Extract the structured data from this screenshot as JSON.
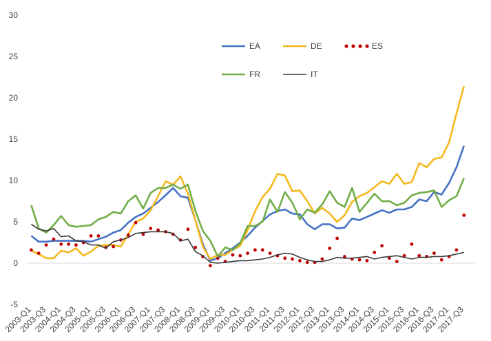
{
  "chart_data": {
    "type": "line",
    "title": "",
    "xlabel": "",
    "ylabel": "",
    "ylim": [
      -5,
      30
    ],
    "yticks": [
      -5,
      0,
      5,
      10,
      15,
      20,
      25,
      30
    ],
    "grid": false,
    "legend_position": "top-right",
    "x": [
      "2003-Q1",
      "2003-Q2",
      "2003-Q3",
      "2003-Q4",
      "2004-Q1",
      "2004-Q2",
      "2004-Q3",
      "2004-Q4",
      "2005-Q1",
      "2005-Q2",
      "2005-Q3",
      "2005-Q4",
      "2006-Q1",
      "2006-Q2",
      "2006-Q3",
      "2006-Q4",
      "2007-Q1",
      "2007-Q2",
      "2007-Q3",
      "2007-Q4",
      "2008-Q1",
      "2008-Q2",
      "2008-Q3",
      "2008-Q4",
      "2009-Q1",
      "2009-Q2",
      "2009-Q3",
      "2009-Q4",
      "2010-Q1",
      "2010-Q2",
      "2010-Q3",
      "2010-Q4",
      "2011-Q1",
      "2011-Q2",
      "2011-Q3",
      "2011-Q4",
      "2012-Q1",
      "2012-Q2",
      "2012-Q3",
      "2012-Q4",
      "2013-Q1",
      "2013-Q2",
      "2013-Q3",
      "2013-Q4",
      "2014-Q1",
      "2014-Q2",
      "2014-Q3",
      "2014-Q4",
      "2015-Q1",
      "2015-Q2",
      "2015-Q3",
      "2015-Q4",
      "2016-Q1",
      "2016-Q2",
      "2016-Q3",
      "2016-Q4",
      "2017-Q1",
      "2017-Q2",
      "2017-Q3",
      "2017-Q4"
    ],
    "tick_labels": [
      "2003-Q1",
      "2003-Q3",
      "2004-Q1",
      "2004-Q3",
      "2005-Q1",
      "2005-Q3",
      "2006-Q1",
      "2006-Q3",
      "2007-Q1",
      "2007-Q3",
      "2008-Q1",
      "2008-Q3",
      "2009-Q1",
      "2009-Q3",
      "2010-Q1",
      "2010-Q3",
      "2011-Q1",
      "2011-Q3",
      "2012-Q1",
      "2012-Q3",
      "2013-Q1",
      "2013-Q3",
      "2014-Q1",
      "2014-Q3",
      "2015-Q1",
      "2015-Q3",
      "2016-Q1",
      "2016-Q3",
      "2017-Q1",
      "2017-Q3"
    ],
    "series": [
      {
        "name": "EA",
        "color": "#4472c4",
        "style": "solid",
        "values": [
          3.3,
          2.6,
          2.6,
          2.7,
          2.7,
          2.7,
          2.7,
          2.7,
          2.6,
          2.9,
          3.2,
          3.7,
          4.0,
          4.9,
          5.6,
          6.0,
          6.7,
          7.4,
          8.2,
          9.1,
          8.1,
          7.9,
          5.2,
          2.3,
          0.3,
          0.6,
          1.2,
          1.8,
          2.5,
          3.3,
          4.3,
          5.1,
          5.9,
          6.3,
          6.5,
          6.0,
          5.9,
          4.7,
          4.1,
          4.7,
          4.7,
          4.2,
          4.3,
          5.4,
          5.2,
          5.6,
          6.0,
          6.4,
          6.1,
          6.5,
          6.5,
          6.8,
          7.7,
          7.5,
          8.6,
          8.3,
          9.7,
          11.6,
          14.2,
          null
        ]
      },
      {
        "name": "DE",
        "color": "#f4b81c",
        "style": "solid",
        "values": [
          1.5,
          1.1,
          0.6,
          0.6,
          1.5,
          1.3,
          1.8,
          0.9,
          1.4,
          2.1,
          2.2,
          2.2,
          2.0,
          3.5,
          5.0,
          5.4,
          6.4,
          8.1,
          9.9,
          9.5,
          10.5,
          8.4,
          5.2,
          2.0,
          0.5,
          1.0,
          1.0,
          1.6,
          2.1,
          4.0,
          6.3,
          8.0,
          9.0,
          10.8,
          10.6,
          8.7,
          8.8,
          7.5,
          6.0,
          6.7,
          6.0,
          5.0,
          5.8,
          7.4,
          8.1,
          8.5,
          9.2,
          9.9,
          9.6,
          10.8,
          9.6,
          9.8,
          12.1,
          11.6,
          12.6,
          12.8,
          14.6,
          18.1,
          21.4,
          null
        ]
      },
      {
        "name": "ES",
        "color": "#c00000",
        "style": "dotted",
        "values": [
          1.6,
          1.2,
          2.2,
          2.9,
          2.3,
          2.3,
          2.2,
          2.5,
          3.3,
          3.3,
          1.9,
          2.0,
          2.8,
          3.4,
          4.9,
          3.5,
          4.2,
          4.0,
          3.8,
          3.5,
          2.8,
          4.1,
          1.9,
          0.8,
          -0.3,
          0.6,
          0.2,
          1.0,
          0.9,
          1.2,
          1.6,
          1.6,
          1.2,
          0.9,
          0.6,
          0.5,
          0.3,
          0.1,
          0.1,
          0.5,
          1.8,
          3.0,
          0.8,
          0.5,
          0.4,
          0.3,
          1.3,
          2.1,
          0.6,
          0.2,
          0.9,
          2.3,
          0.9,
          0.8,
          1.2,
          0.4,
          0.8,
          1.6,
          5.8,
          null
        ]
      },
      {
        "name": "FR",
        "color": "#70ad47",
        "style": "solid",
        "values": [
          7.0,
          4.2,
          3.7,
          4.6,
          5.7,
          4.6,
          4.4,
          4.5,
          4.6,
          5.3,
          5.6,
          6.2,
          6.0,
          7.5,
          8.2,
          6.6,
          8.5,
          9.1,
          9.1,
          9.5,
          9.0,
          9.5,
          6.3,
          3.9,
          2.7,
          0.8,
          1.9,
          1.6,
          2.4,
          4.5,
          4.5,
          5.0,
          7.7,
          6.2,
          8.6,
          7.3,
          5.3,
          6.5,
          6.1,
          7.1,
          8.7,
          7.3,
          6.8,
          9.1,
          6.2,
          7.3,
          8.4,
          7.5,
          7.5,
          7.0,
          7.3,
          8.2,
          8.5,
          8.6,
          8.8,
          6.8,
          7.6,
          8.1,
          10.3,
          null
        ]
      },
      {
        "name": "IT",
        "color": "#3a3a3a",
        "style": "solid",
        "values": [
          4.7,
          4.1,
          3.9,
          4.2,
          3.2,
          3.3,
          2.7,
          2.6,
          2.2,
          2.2,
          1.8,
          2.6,
          2.8,
          3.1,
          3.6,
          3.7,
          3.8,
          3.8,
          3.8,
          3.6,
          2.7,
          2.9,
          1.4,
          0.9,
          0.1,
          0.0,
          0.1,
          0.2,
          0.3,
          0.3,
          0.4,
          0.5,
          0.7,
          1.0,
          1.2,
          1.1,
          0.7,
          0.4,
          0.2,
          0.2,
          0.4,
          0.7,
          0.6,
          0.6,
          0.7,
          0.8,
          0.5,
          0.7,
          0.8,
          0.9,
          0.7,
          0.5,
          0.7,
          0.7,
          0.8,
          0.8,
          0.9,
          1.1,
          1.3,
          null
        ]
      }
    ]
  }
}
